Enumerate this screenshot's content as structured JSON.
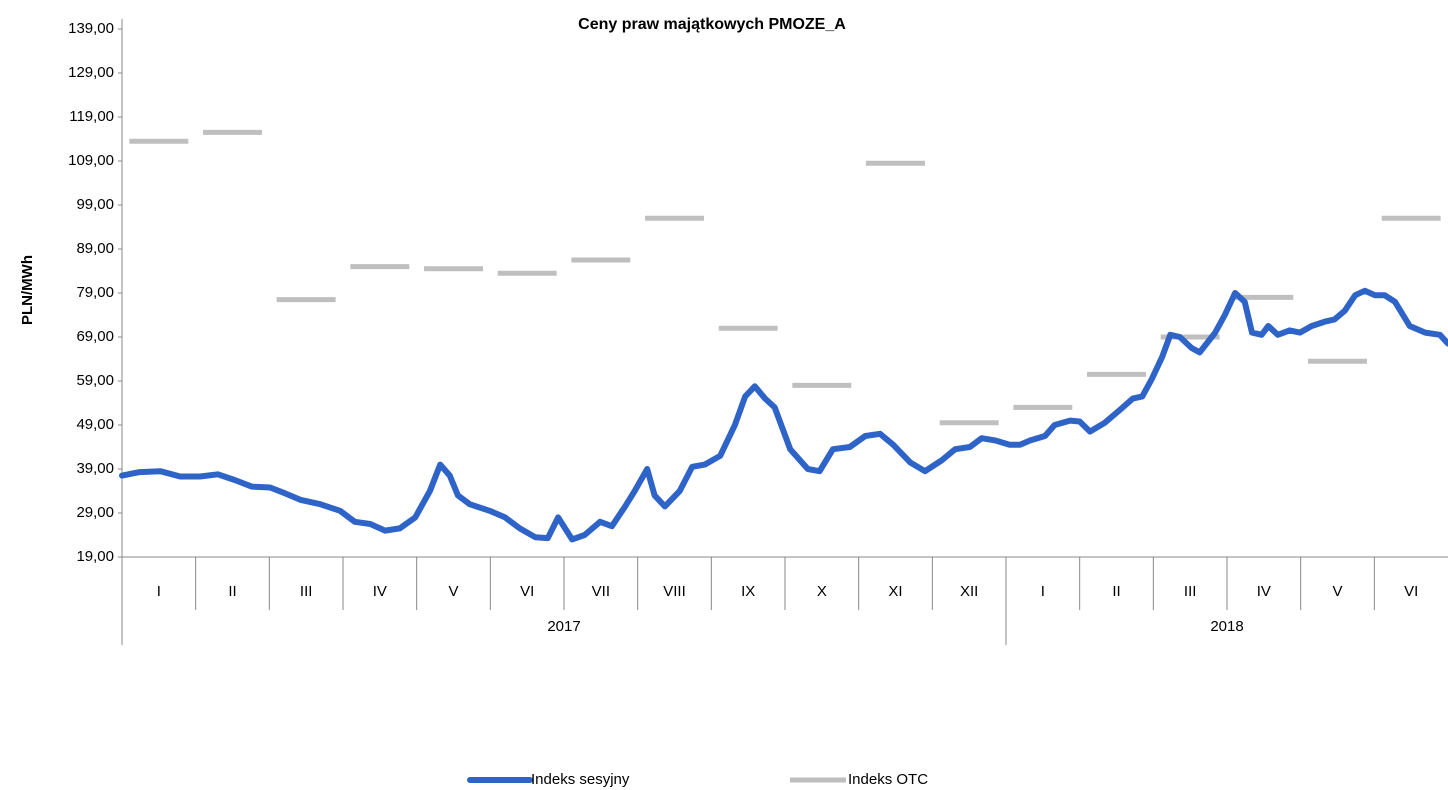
{
  "chart_data": {
    "type": "line",
    "title": "Ceny praw majątkowych PMOZE_A",
    "ylabel": "PLN/MWh",
    "ylim": [
      19,
      139
    ],
    "yticks": [
      {
        "value": 19,
        "label": "19,00"
      },
      {
        "value": 29,
        "label": "29,00"
      },
      {
        "value": 39,
        "label": "39,00"
      },
      {
        "value": 49,
        "label": "49,00"
      },
      {
        "value": 59,
        "label": "59,00"
      },
      {
        "value": 69,
        "label": "69,00"
      },
      {
        "value": 79,
        "label": "79,00"
      },
      {
        "value": 89,
        "label": "89,00"
      },
      {
        "value": 99,
        "label": "99,00"
      },
      {
        "value": 109,
        "label": "109,00"
      },
      {
        "value": 119,
        "label": "119,00"
      },
      {
        "value": 129,
        "label": "129,00"
      },
      {
        "value": 139,
        "label": "139,00"
      }
    ],
    "grid": false,
    "groups": [
      {
        "name": "2017",
        "categories": [
          "I",
          "II",
          "III",
          "IV",
          "V",
          "VI",
          "VII",
          "VIII",
          "IX",
          "X",
          "XI",
          "XII"
        ]
      },
      {
        "name": "2018",
        "categories": [
          "I",
          "II",
          "III",
          "IV",
          "V",
          "VI"
        ]
      }
    ],
    "xlim": [
      0,
      18
    ],
    "legend": "bottom",
    "series": [
      {
        "name": "Indeks sesyjny",
        "color": "#2e64c8",
        "x": [
          0,
          0.24,
          0.52,
          0.79,
          1.06,
          1.3,
          1.53,
          1.76,
          2.01,
          2.21,
          2.42,
          2.69,
          2.96,
          3.16,
          3.37,
          3.57,
          3.77,
          3.98,
          4.18,
          4.32,
          4.45,
          4.56,
          4.72,
          4.99,
          5.2,
          5.4,
          5.61,
          5.78,
          5.92,
          6.11,
          6.28,
          6.49,
          6.65,
          6.83,
          6.96,
          7.13,
          7.23,
          7.37,
          7.57,
          7.74,
          7.91,
          8.12,
          8.32,
          8.46,
          8.59,
          8.73,
          8.86,
          9.07,
          9.31,
          9.47,
          9.65,
          9.88,
          10.09,
          10.29,
          10.47,
          10.7,
          10.9,
          11.13,
          11.31,
          11.51,
          11.67,
          11.85,
          12.05,
          12.19,
          12.33,
          12.53,
          12.66,
          12.87,
          13.0,
          13.14,
          13.34,
          13.55,
          13.72,
          13.85,
          13.98,
          14.12,
          14.23,
          14.36,
          14.52,
          14.63,
          14.84,
          14.97,
          15.11,
          15.24,
          15.34,
          15.47,
          15.56,
          15.69,
          15.85,
          15.99,
          16.15,
          16.33,
          16.46,
          16.6,
          16.74,
          16.87,
          17.01,
          17.14,
          17.28,
          17.48,
          17.69,
          17.89,
          18.0
        ],
        "values": [
          37.5,
          38.3,
          38.5,
          37.3,
          37.3,
          37.8,
          36.5,
          35,
          34.8,
          33.5,
          32,
          31,
          29.5,
          27,
          26.5,
          25,
          25.5,
          28,
          34,
          40,
          37.5,
          33,
          31,
          29.5,
          28,
          25.5,
          23.5,
          23.3,
          28,
          23,
          24,
          27,
          26,
          30.5,
          34,
          39,
          33,
          30.5,
          34,
          39.5,
          40,
          42,
          49,
          55.5,
          57.8,
          55,
          53,
          43.5,
          39,
          38.5,
          43.5,
          44,
          46.5,
          47,
          44.5,
          40.5,
          38.5,
          41,
          43.5,
          44,
          46,
          45.5,
          44.5,
          44.5,
          45.5,
          46.5,
          49,
          50,
          49.8,
          47.5,
          49.5,
          52.5,
          55,
          55.5,
          59.5,
          64.5,
          69.5,
          69,
          66.5,
          65.5,
          70,
          74,
          79,
          77,
          70,
          69.5,
          71.5,
          69.5,
          70.5,
          70,
          71.5,
          72.5,
          73,
          75,
          78.5,
          79.5,
          78.5,
          78.5,
          77,
          71.5,
          70,
          69.5,
          67.5
        ]
      },
      {
        "name": "Indeks OTC",
        "color": "#bfbfbf",
        "values": [
          113.5,
          115.5,
          77.5,
          85,
          84.5,
          83.5,
          86.5,
          96,
          71,
          58,
          108.5,
          49.5,
          53,
          60.5,
          69,
          78,
          63.5,
          96
        ]
      }
    ]
  }
}
